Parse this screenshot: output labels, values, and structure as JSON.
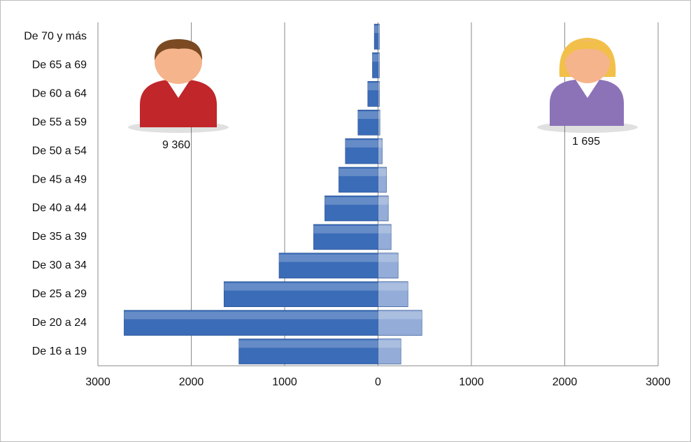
{
  "chart_data": {
    "type": "pyramid",
    "categories": [
      "De 70 y más",
      "De 65 a 69",
      "De 60 a 64",
      "De 55 a 59",
      "De 50 a 54",
      "De 45 a 49",
      "De 40 a 44",
      "De 35 a 39",
      "De 30 a 34",
      "De 25 a 29",
      "De 20 a 24",
      "De 16 a 19"
    ],
    "series": [
      {
        "color": "#3b6cb8",
        "values": [
          -40,
          -60,
          -110,
          -215,
          -350,
          -420,
          -570,
          -690,
          -1060,
          -1650,
          -2720,
          -1490
        ]
      },
      {
        "color": "#93acd8",
        "values": [
          15,
          15,
          15,
          20,
          45,
          90,
          110,
          140,
          215,
          320,
          470,
          245
        ]
      }
    ],
    "annotations": [
      "9 360",
      "1 695"
    ],
    "xlim": [
      -3000,
      3000
    ],
    "xticks": [
      {
        "value": -3000,
        "label": "3000"
      },
      {
        "value": -2000,
        "label": "2000"
      },
      {
        "value": -1000,
        "label": "1000"
      },
      0,
      1000,
      2000,
      3000
    ],
    "grid": true
  }
}
